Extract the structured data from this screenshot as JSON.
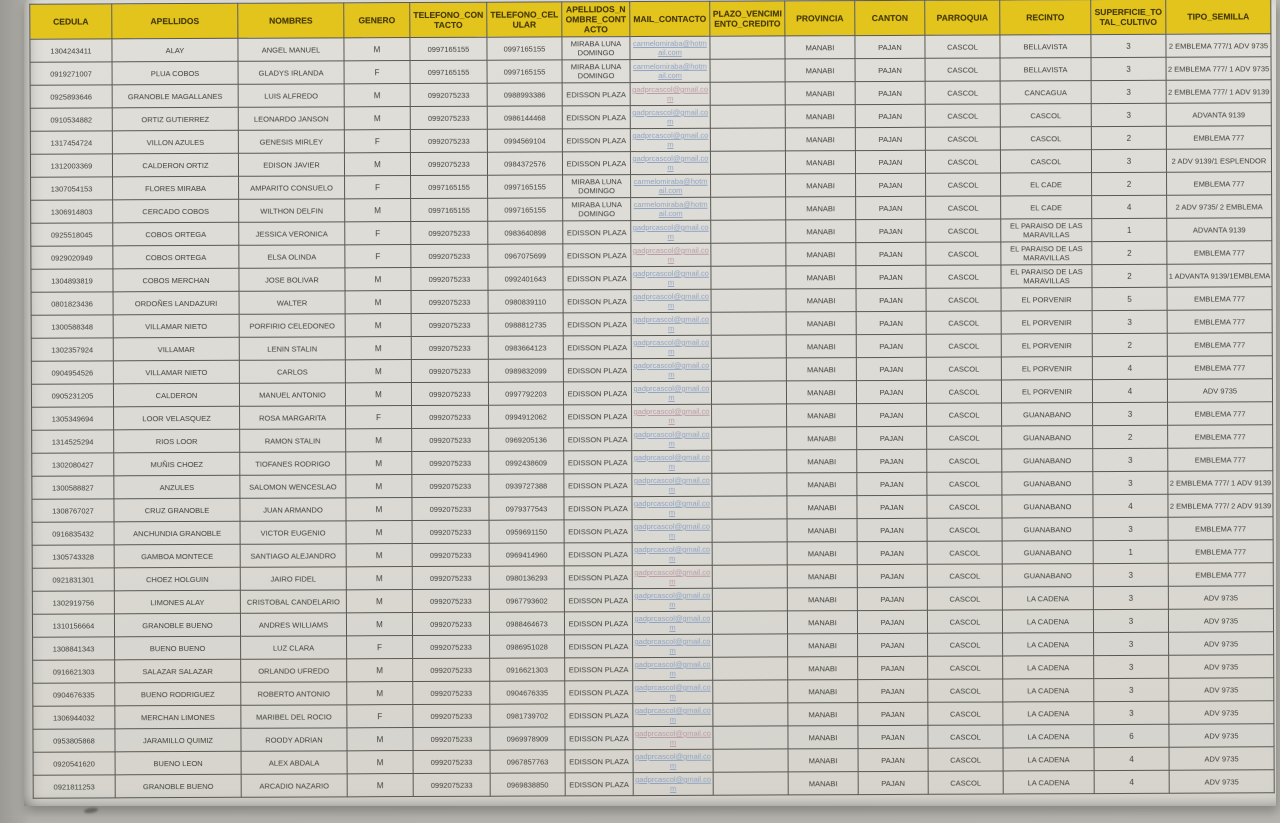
{
  "table": {
    "columns": [
      {
        "key": "cedula",
        "label": "CEDULA"
      },
      {
        "key": "apellidos",
        "label": "APELLIDOS"
      },
      {
        "key": "nombres",
        "label": "NOMBRES"
      },
      {
        "key": "genero",
        "label": "GENERO"
      },
      {
        "key": "telefono_contacto",
        "label": "TELEFONO_CONTACTO"
      },
      {
        "key": "telefono_celular",
        "label": "TELEFONO_CELULAR"
      },
      {
        "key": "apellidos_nombre_contacto",
        "label": "APELLIDOS_NOMBRE_CONTACTO"
      },
      {
        "key": "mail_contacto",
        "label": "MAIL_CONTACTO"
      },
      {
        "key": "plazo_vencimiento_credito",
        "label": "PLAZO_VENCIMIENTO_CREDITO"
      },
      {
        "key": "provincia",
        "label": "PROVINCIA"
      },
      {
        "key": "canton",
        "label": "CANTON"
      },
      {
        "key": "parroquia",
        "label": "PARROQUIA"
      },
      {
        "key": "recinto",
        "label": "RECINTO"
      },
      {
        "key": "superficie_total_cultivo",
        "label": "SUPERFICIE_TOTAL_CULTIVO"
      },
      {
        "key": "tipo_semilla",
        "label": "TIPO_SEMILLA"
      }
    ],
    "rows": [
      [
        "1304243411",
        "ALAY",
        "ANGEL MANUEL",
        "M",
        "0997165155",
        "0997165155",
        "MIRABA LUNA DOMINGO",
        "carmelomiraba@hotmail.com",
        "",
        "MANABI",
        "PAJAN",
        "CASCOL",
        "BELLAVISTA",
        "3",
        "2 EMBLEMA 777/1 ADV 9735"
      ],
      [
        "0919271007",
        "PLUA COBOS",
        "GLADYS IRLANDA",
        "F",
        "0997165155",
        "0997165155",
        "MIRABA LUNA DOMINGO",
        "carmelomiraba@hotmail.com",
        "",
        "MANABI",
        "PAJAN",
        "CASCOL",
        "BELLAVISTA",
        "3",
        "2 EMBLEMA 777/ 1 ADV 9735"
      ],
      [
        "0925893646",
        "GRANOBLE MAGALLANES",
        "LUIS ALFREDO",
        "M",
        "0992075233",
        "0988993386",
        "EDISSON PLAZA",
        "gadprcascol@gmail.com",
        "",
        "MANABI",
        "PAJAN",
        "CASCOL",
        "CANCAGUA",
        "3",
        "2 EMBLEMA 777/ 1 ADV 9139"
      ],
      [
        "0910534882",
        "ORTIZ GUTIERREZ",
        "LEONARDO JANSON",
        "M",
        "0992075233",
        "0986144468",
        "EDISSON PLAZA",
        "gadprcascol@gmail.com",
        "",
        "MANABI",
        "PAJAN",
        "CASCOL",
        "CASCOL",
        "3",
        "ADVANTA 9139"
      ],
      [
        "1317454724",
        "VILLON AZULES",
        "GENESIS MIRLEY",
        "F",
        "0992075233",
        "0994569104",
        "EDISSON PLAZA",
        "gadprcascol@gmail.com",
        "",
        "MANABI",
        "PAJAN",
        "CASCOL",
        "CASCOL",
        "2",
        "EMBLEMA 777"
      ],
      [
        "1312003369",
        "CALDERON ORTIZ",
        "EDISON JAVIER",
        "M",
        "0992075233",
        "0984372576",
        "EDISSON PLAZA",
        "gadprcascol@gmail.com",
        "",
        "MANABI",
        "PAJAN",
        "CASCOL",
        "CASCOL",
        "3",
        "2 ADV 9139/1 ESPLENDOR"
      ],
      [
        "1307054153",
        "FLORES MIRABA",
        "AMPARITO CONSUELO",
        "F",
        "0997165155",
        "0997165155",
        "MIRABA LUNA DOMINGO",
        "carmelomiraba@hotmail.com",
        "",
        "MANABI",
        "PAJAN",
        "CASCOL",
        "EL CADE",
        "2",
        "EMBLEMA 777"
      ],
      [
        "1306914803",
        "CERCADO COBOS",
        "WILTHON DELFIN",
        "M",
        "0997165155",
        "0997165155",
        "MIRABA LUNA DOMINGO",
        "carmelomiraba@hotmail.com",
        "",
        "MANABI",
        "PAJAN",
        "CASCOL",
        "EL CADE",
        "4",
        "2 ADV 9735/ 2 EMBLEMA"
      ],
      [
        "0925518045",
        "COBOS ORTEGA",
        "JESSICA VERONICA",
        "F",
        "0992075233",
        "0983640898",
        "EDISSON PLAZA",
        "gadprcascol@gmail.com",
        "",
        "MANABI",
        "PAJAN",
        "CASCOL",
        "EL PARAISO DE LAS MARAVILLAS",
        "1",
        "ADVANTA 9139"
      ],
      [
        "0929020949",
        "COBOS ORTEGA",
        "ELSA OLINDA",
        "F",
        "0992075233",
        "0967075699",
        "EDISSON PLAZA",
        "gadprcascol@gmail.com",
        "",
        "MANABI",
        "PAJAN",
        "CASCOL",
        "EL PARAISO DE LAS MARAVILLAS",
        "2",
        "EMBLEMA 777"
      ],
      [
        "1304893819",
        "COBOS MERCHAN",
        "JOSE BOLIVAR",
        "M",
        "0992075233",
        "0992401643",
        "EDISSON PLAZA",
        "gadprcascol@gmail.com",
        "",
        "MANABI",
        "PAJAN",
        "CASCOL",
        "EL PARAISO DE LAS MARAVILLAS",
        "2",
        "1 ADVANTA 9139/1EMBLEMA"
      ],
      [
        "0801823436",
        "ORDOÑES LANDAZURI",
        "WALTER",
        "M",
        "0992075233",
        "0980839110",
        "EDISSON PLAZA",
        "gadprcascol@gmail.com",
        "",
        "MANABI",
        "PAJAN",
        "CASCOL",
        "EL PORVENIR",
        "5",
        "EMBLEMA 777"
      ],
      [
        "1300588348",
        "VILLAMAR NIETO",
        "PORFIRIO CELEDONEO",
        "M",
        "0992075233",
        "0988812735",
        "EDISSON PLAZA",
        "gadprcascol@gmail.com",
        "",
        "MANABI",
        "PAJAN",
        "CASCOL",
        "EL PORVENIR",
        "3",
        "EMBLEMA 777"
      ],
      [
        "1302357924",
        "VILLAMAR",
        "LENIN STALIN",
        "M",
        "0992075233",
        "0983664123",
        "EDISSON PLAZA",
        "gadprcascol@gmail.com",
        "",
        "MANABI",
        "PAJAN",
        "CASCOL",
        "EL PORVENIR",
        "2",
        "EMBLEMA 777"
      ],
      [
        "0904954526",
        "VILLAMAR NIETO",
        "CARLOS",
        "M",
        "0992075233",
        "0989832099",
        "EDISSON PLAZA",
        "gadprcascol@gmail.com",
        "",
        "MANABI",
        "PAJAN",
        "CASCOL",
        "EL PORVENIR",
        "4",
        "EMBLEMA 777"
      ],
      [
        "0905231205",
        "CALDERON",
        "MANUEL ANTONIO",
        "M",
        "0992075233",
        "0997792203",
        "EDISSON PLAZA",
        "gadprcascol@gmail.com",
        "",
        "MANABI",
        "PAJAN",
        "CASCOL",
        "EL PORVENIR",
        "4",
        "ADV 9735"
      ],
      [
        "1305349694",
        "LOOR VELASQUEZ",
        "ROSA MARGARITA",
        "F",
        "0992075233",
        "0994912062",
        "EDISSON PLAZA",
        "gadprcascol@gmail.com",
        "",
        "MANABI",
        "PAJAN",
        "CASCOL",
        "GUANABANO",
        "3",
        "EMBLEMA 777"
      ],
      [
        "1314525294",
        "RIOS LOOR",
        "RAMON STALIN",
        "M",
        "0992075233",
        "0969205136",
        "EDISSON PLAZA",
        "gadprcascol@gmail.com",
        "",
        "MANABI",
        "PAJAN",
        "CASCOL",
        "GUANABANO",
        "2",
        "EMBLEMA 777"
      ],
      [
        "1302080427",
        "MUÑIS CHOEZ",
        "TIOFANES RODRIGO",
        "M",
        "0992075233",
        "0992438609",
        "EDISSON PLAZA",
        "gadprcascol@gmail.com",
        "",
        "MANABI",
        "PAJAN",
        "CASCOL",
        "GUANABANO",
        "3",
        "EMBLEMA 777"
      ],
      [
        "1300588827",
        "ANZULES",
        "SALOMON WENCESLAO",
        "M",
        "0992075233",
        "0939727388",
        "EDISSON PLAZA",
        "gadprcascol@gmail.com",
        "",
        "MANABI",
        "PAJAN",
        "CASCOL",
        "GUANABANO",
        "3",
        "2 EMBLEMA 777/ 1 ADV 9139"
      ],
      [
        "1308767027",
        "CRUZ GRANOBLE",
        "JUAN ARMANDO",
        "M",
        "0992075233",
        "0979377543",
        "EDISSON PLAZA",
        "gadprcascol@gmail.com",
        "",
        "MANABI",
        "PAJAN",
        "CASCOL",
        "GUANABANO",
        "4",
        "2 EMBLEMA 777/ 2 ADV 9139"
      ],
      [
        "0916835432",
        "ANCHUNDIA GRANOBLE",
        "VICTOR EUGENIO",
        "M",
        "0992075233",
        "0959691150",
        "EDISSON PLAZA",
        "gadprcascol@gmail.com",
        "",
        "MANABI",
        "PAJAN",
        "CASCOL",
        "GUANABANO",
        "3",
        "EMBLEMA 777"
      ],
      [
        "1305743328",
        "GAMBOA MONTECE",
        "SANTIAGO ALEJANDRO",
        "M",
        "0992075233",
        "0969414960",
        "EDISSON PLAZA",
        "gadprcascol@gmail.com",
        "",
        "MANABI",
        "PAJAN",
        "CASCOL",
        "GUANABANO",
        "1",
        "EMBLEMA 777"
      ],
      [
        "0921831301",
        "CHOEZ HOLGUIN",
        "JAIRO FIDEL",
        "M",
        "0992075233",
        "0980136293",
        "EDISSON PLAZA",
        "gadprcascol@gmail.com",
        "",
        "MANABI",
        "PAJAN",
        "CASCOL",
        "GUANABANO",
        "3",
        "EMBLEMA 777"
      ],
      [
        "1302919756",
        "LIMONES ALAY",
        "CRISTOBAL CANDELARIO",
        "M",
        "0992075233",
        "0967793602",
        "EDISSON PLAZA",
        "gadprcascol@gmail.com",
        "",
        "MANABI",
        "PAJAN",
        "CASCOL",
        "LA CADENA",
        "3",
        "ADV 9735"
      ],
      [
        "1310156664",
        "GRANOBLE BUENO",
        "ANDRES WILLIAMS",
        "M",
        "0992075233",
        "0988464673",
        "EDISSON PLAZA",
        "gadprcascol@gmail.com",
        "",
        "MANABI",
        "PAJAN",
        "CASCOL",
        "LA CADENA",
        "3",
        "ADV 9735"
      ],
      [
        "1308841343",
        "BUENO BUENO",
        "LUZ CLARA",
        "F",
        "0992075233",
        "0986951028",
        "EDISSON PLAZA",
        "gadprcascol@gmail.com",
        "",
        "MANABI",
        "PAJAN",
        "CASCOL",
        "LA CADENA",
        "3",
        "ADV 9735"
      ],
      [
        "0916621303",
        "SALAZAR SALAZAR",
        "ORLANDO UFREDO",
        "M",
        "0992075233",
        "0916621303",
        "EDISSON PLAZA",
        "gadprcascol@gmail.com",
        "",
        "MANABI",
        "PAJAN",
        "CASCOL",
        "LA CADENA",
        "3",
        "ADV 9735"
      ],
      [
        "0904676335",
        "BUENO RODRIGUEZ",
        "ROBERTO ANTONIO",
        "M",
        "0992075233",
        "0904676335",
        "EDISSON PLAZA",
        "gadprcascol@gmail.com",
        "",
        "MANABI",
        "PAJAN",
        "CASCOL",
        "LA CADENA",
        "3",
        "ADV 9735"
      ],
      [
        "1306944032",
        "MERCHAN LIMONES",
        "MARIBEL DEL ROCIO",
        "F",
        "0992075233",
        "0981739702",
        "EDISSON PLAZA",
        "gadprcascol@gmail.com",
        "",
        "MANABI",
        "PAJAN",
        "CASCOL",
        "LA CADENA",
        "3",
        "ADV 9735"
      ],
      [
        "0953805868",
        "JARAMILLO QUIMIZ",
        "ROODY ADRIAN",
        "M",
        "0992075233",
        "0969978909",
        "EDISSON PLAZA",
        "gadprcascol@gmail.com",
        "",
        "MANABI",
        "PAJAN",
        "CASCOL",
        "LA CADENA",
        "6",
        "ADV 9735"
      ],
      [
        "0920541620",
        "BUENO LEON",
        "ALEX ABDALA",
        "M",
        "0992075233",
        "0967857763",
        "EDISSON PLAZA",
        "gadprcascol@gmail.com",
        "",
        "MANABI",
        "PAJAN",
        "CASCOL",
        "LA CADENA",
        "4",
        "ADV 9735"
      ],
      [
        "0921811253",
        "GRANOBLE BUENO",
        "ARCADIO NAZARIO",
        "M",
        "0992075233",
        "0969838850",
        "EDISSON PLAZA",
        "gadprcascol@gmail.com",
        "",
        "MANABI",
        "PAJAN",
        "CASCOL",
        "LA CADENA",
        "4",
        "ADV 9735"
      ]
    ]
  },
  "colors": {
    "header_bg": "#e2c41c",
    "header_text": "#4a3c0a",
    "cell_text": "#3f3e3b",
    "grid_line": "#5a5853",
    "paper": "#dcdad4",
    "photo_margin": "#a9a7a1",
    "link_blue": "#8fa3c2"
  }
}
